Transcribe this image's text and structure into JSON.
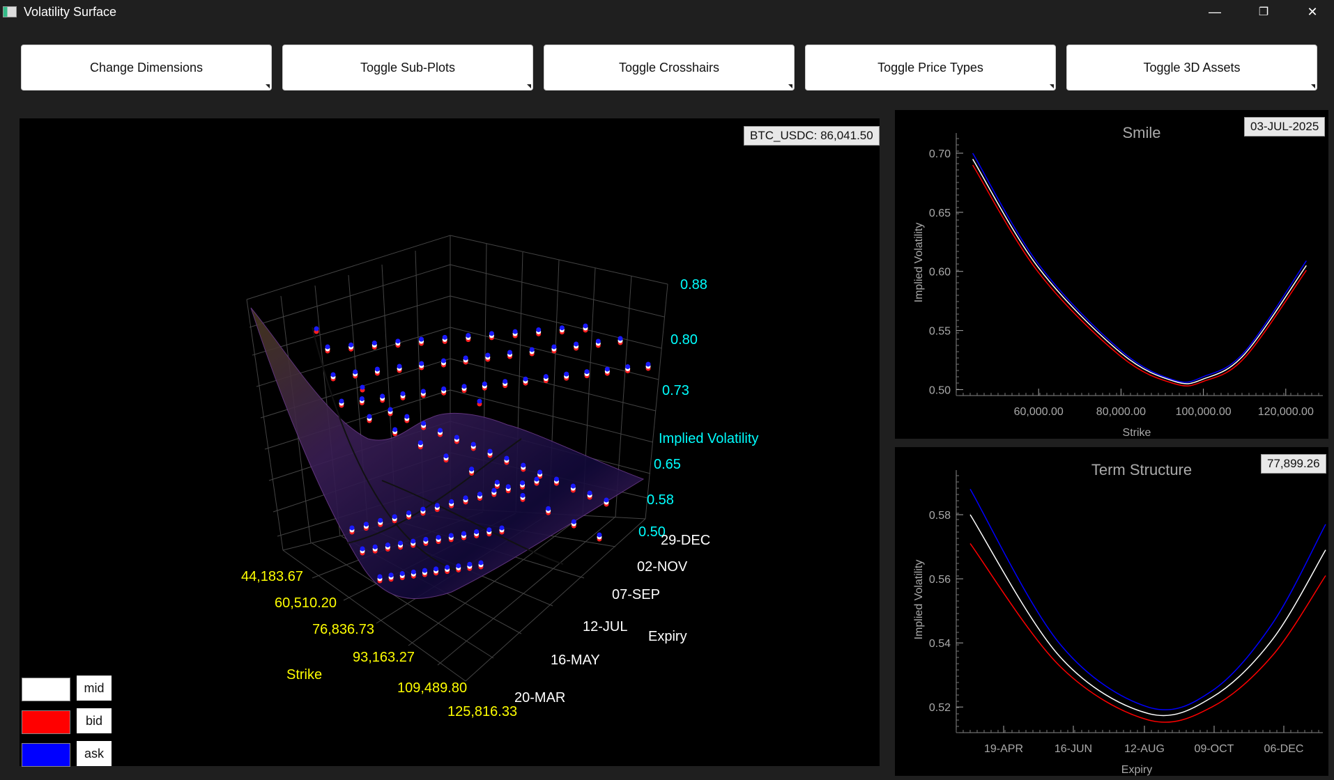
{
  "window": {
    "title": "Volatility Surface",
    "minimize": "—",
    "restore": "❐",
    "close": "✕"
  },
  "toolbar": [
    {
      "id": "change-dimensions-button",
      "label": "Change Dimensions"
    },
    {
      "id": "toggle-sub-plots-button",
      "label": "Toggle Sub-Plots"
    },
    {
      "id": "toggle-crosshairs-button",
      "label": "Toggle Crosshairs"
    },
    {
      "id": "toggle-price-types-button",
      "label": "Toggle Price Types"
    },
    {
      "id": "toggle-3d-assets-button",
      "label": "Toggle 3D Assets"
    }
  ],
  "surface": {
    "spot_label": "BTC_USDC:  86,041.50",
    "iv_axis_label": "Implied Volatility",
    "iv_ticks": [
      "0.88",
      "0.80",
      "0.73",
      "0.65",
      "0.58",
      "0.50"
    ],
    "expiry_axis_label": "Expiry",
    "expiry_ticks": [
      "29-DEC",
      "02-NOV",
      "07-SEP",
      "12-JUL",
      "16-MAY",
      "20-MAR"
    ],
    "strike_axis_label": "Strike",
    "strike_ticks": [
      "44,183.67",
      "60,510.20",
      "76,836.73",
      "93,163.27",
      "109,489.80",
      "125,816.33"
    ],
    "legend": [
      {
        "label": "mid",
        "color": "#ffffff"
      },
      {
        "label": "bid",
        "color": "#ff0000"
      },
      {
        "label": "ask",
        "color": "#0000ff"
      }
    ]
  },
  "chart_data": [
    {
      "type": "line",
      "title": "Smile",
      "date_label": "03-JUL-2025",
      "xlabel": "Strike",
      "ylabel": "Implied Volatility",
      "xticks": [
        "60,000.00",
        "80,000.00",
        "100,000.00",
        "120,000.00"
      ],
      "yticks": [
        "0.70",
        "0.65",
        "0.60",
        "0.55",
        "0.50"
      ],
      "xlim": [
        40000,
        129000
      ],
      "ylim": [
        0.495,
        0.72
      ],
      "series": [
        {
          "color": "#0000ff",
          "x": [
            44000,
            60000,
            80000,
            93000,
            100000,
            110000,
            125000
          ],
          "values": [
            0.7,
            0.606,
            0.533,
            0.508,
            0.511,
            0.532,
            0.609
          ]
        },
        {
          "color": "#ffffff",
          "x": [
            44000,
            60000,
            80000,
            93000,
            100000,
            110000,
            125000
          ],
          "values": [
            0.695,
            0.603,
            0.531,
            0.507,
            0.509,
            0.53,
            0.605
          ]
        },
        {
          "color": "#ff0000",
          "x": [
            44000,
            60000,
            80000,
            93000,
            100000,
            110000,
            125000
          ],
          "values": [
            0.69,
            0.599,
            0.528,
            0.505,
            0.507,
            0.527,
            0.601
          ]
        }
      ]
    },
    {
      "type": "line",
      "title": "Term Structure",
      "strike_label": "77,899.26",
      "xlabel": "Expiry",
      "ylabel": "Implied Volatility",
      "xticks": [
        "19-APR",
        "16-JUN",
        "12-AUG",
        "09-OCT",
        "06-DEC"
      ],
      "yticks": [
        "0.58",
        "0.56",
        "0.54",
        "0.52"
      ],
      "ylim": [
        0.512,
        0.595
      ],
      "series": [
        {
          "color": "#0000ff",
          "x": [
            0,
            0.25,
            0.5,
            0.68,
            0.85,
            1.0
          ],
          "values": [
            0.588,
            0.54,
            0.52,
            0.525,
            0.546,
            0.577
          ]
        },
        {
          "color": "#ffffff",
          "x": [
            0,
            0.25,
            0.5,
            0.68,
            0.85,
            1.0
          ],
          "values": [
            0.58,
            0.536,
            0.518,
            0.523,
            0.541,
            0.569
          ]
        },
        {
          "color": "#ff0000",
          "x": [
            0,
            0.25,
            0.5,
            0.68,
            0.85,
            1.0
          ],
          "values": [
            0.571,
            0.533,
            0.516,
            0.52,
            0.536,
            0.561
          ]
        }
      ]
    }
  ]
}
